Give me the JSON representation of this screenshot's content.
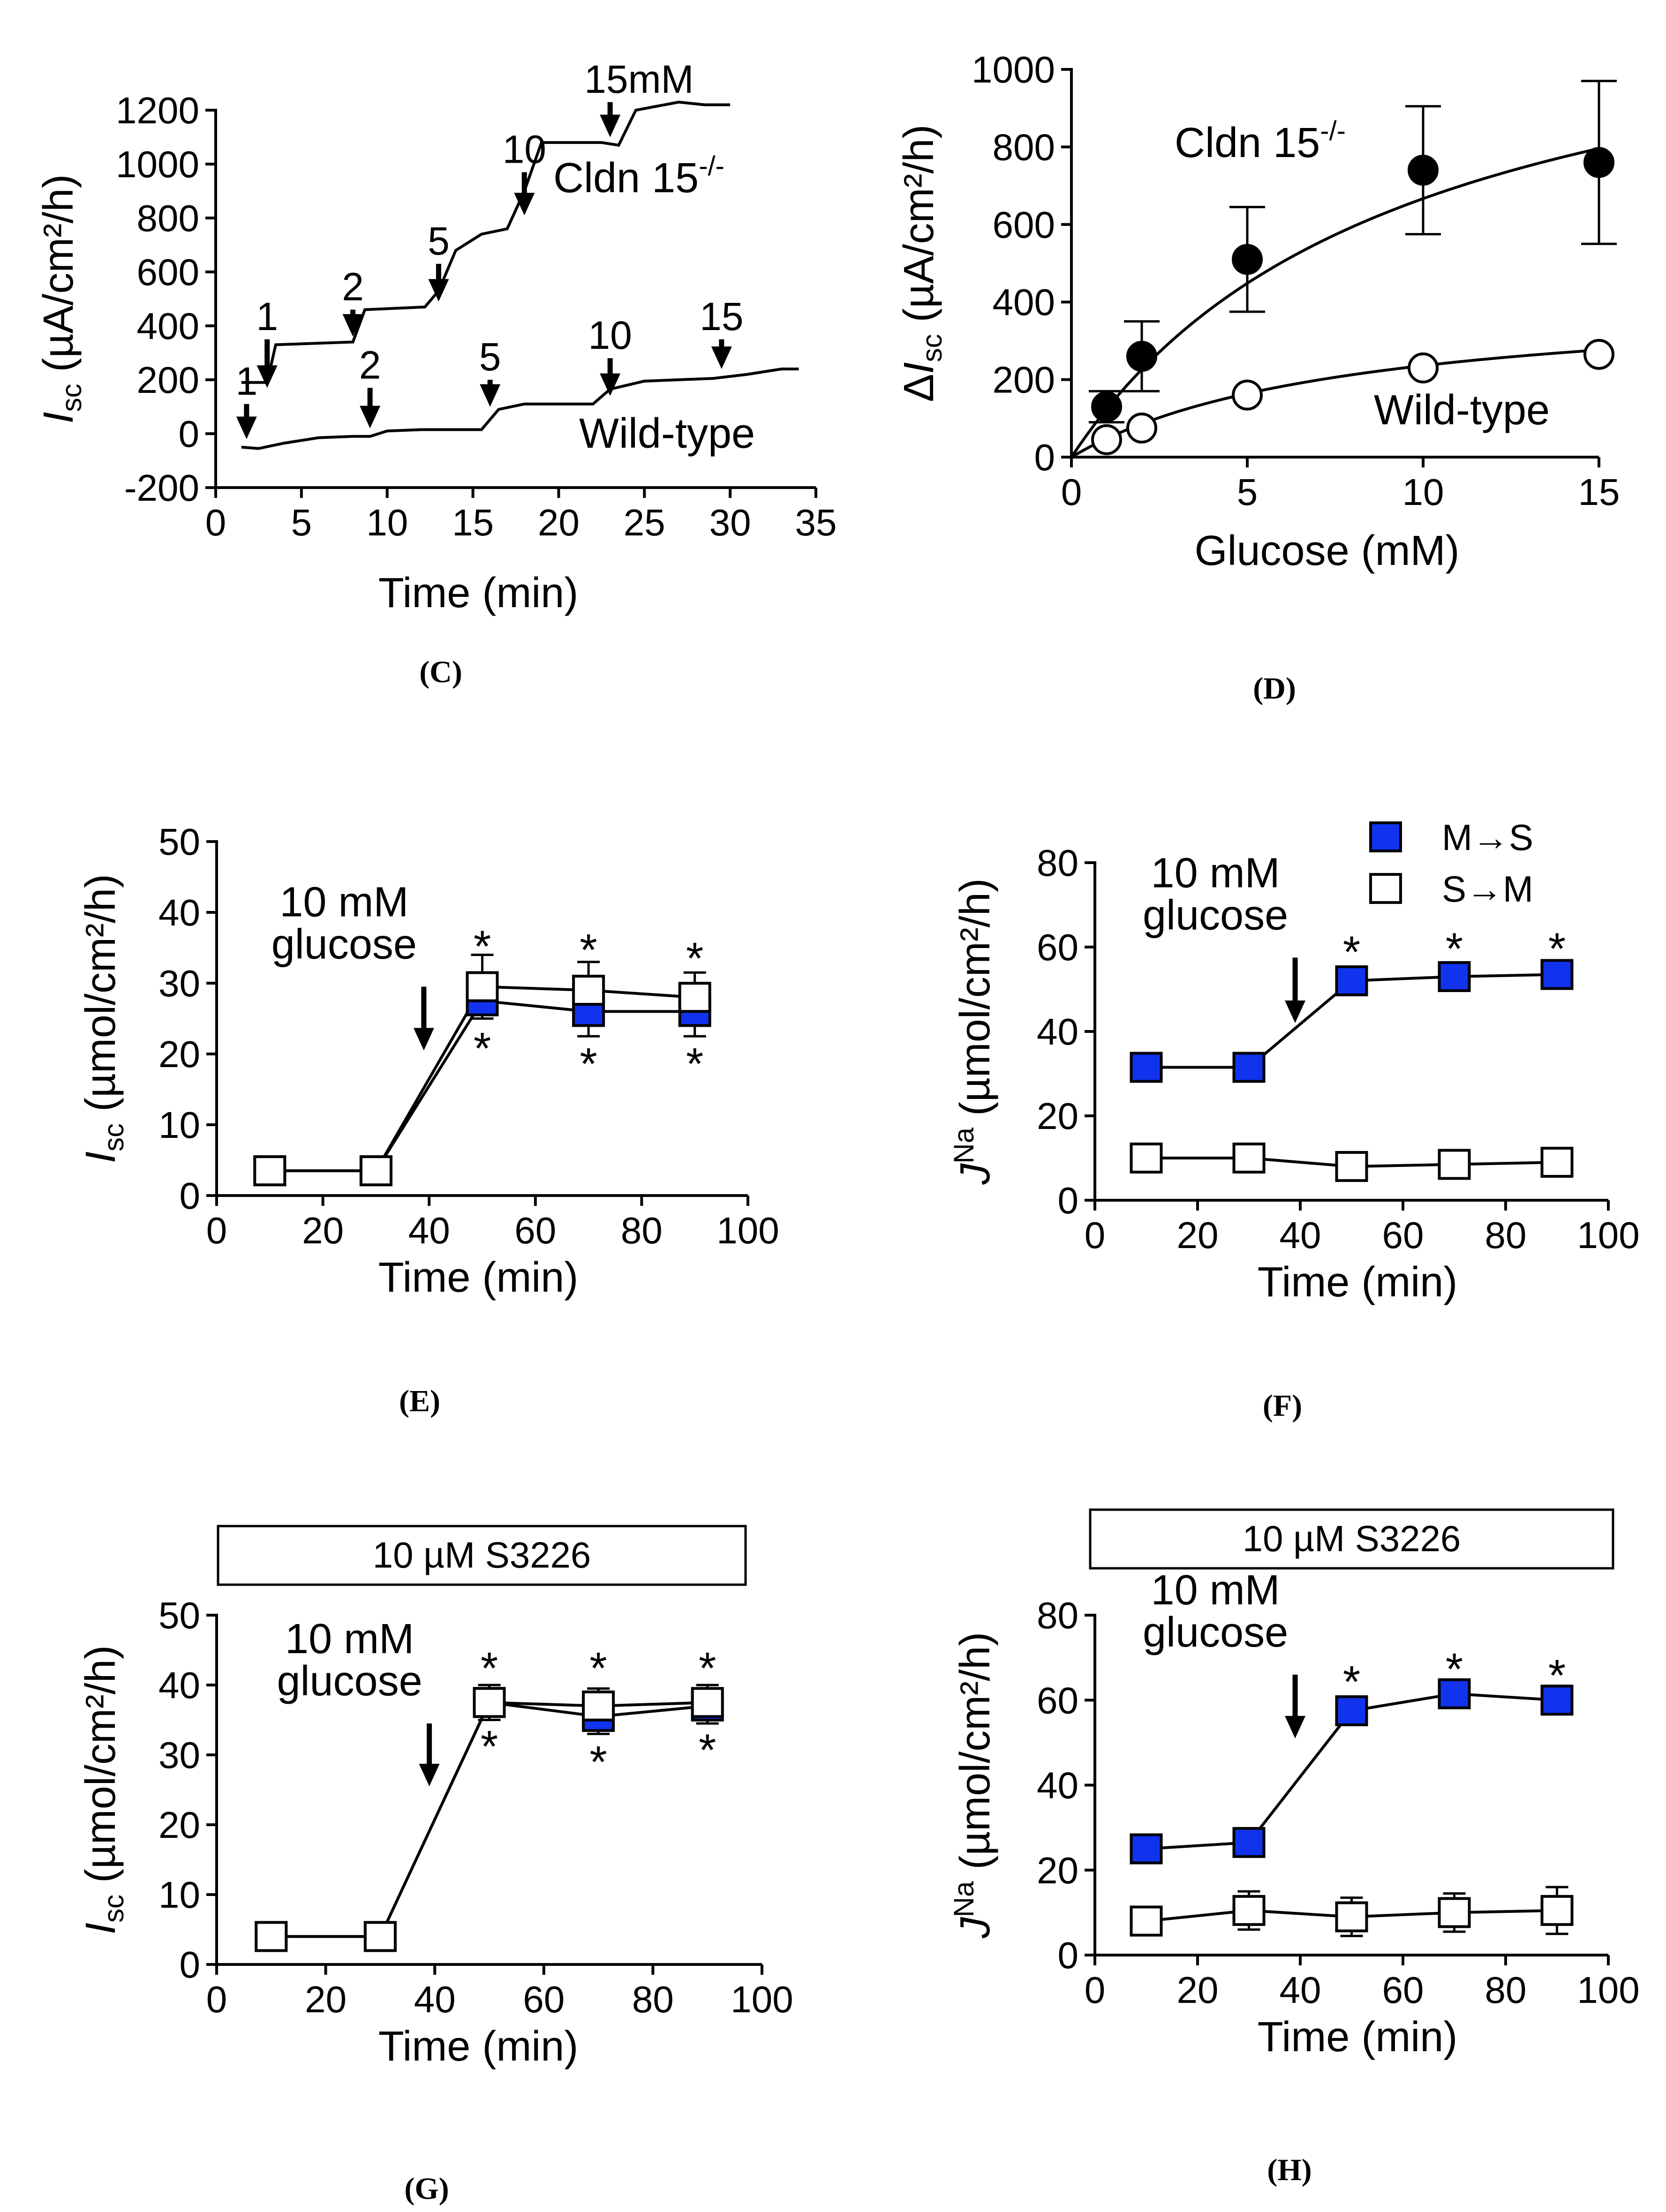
{
  "colors": {
    "filled_marker": "#1133EE",
    "open_marker": "#FFFFFF",
    "line": "#000000"
  },
  "chart_data": [
    {
      "id": "C",
      "type": "line",
      "caption": "(C)",
      "ylabel": {
        "main": "I",
        "sub": "sc",
        "rest": " (µA/cm²/h)"
      },
      "xlabel": "Time (min)",
      "xlim": [
        0,
        35
      ],
      "ylim": [
        -200,
        1200
      ],
      "xticks": [
        0,
        5,
        10,
        15,
        20,
        25,
        30,
        35
      ],
      "yticks": [
        -200,
        0,
        200,
        400,
        600,
        800,
        1000,
        1200
      ],
      "series": [
        {
          "name": "Cldn 15-/-",
          "label_main": "Cldn 15",
          "label_sup": "-/-",
          "x": [
            1.5,
            3,
            3.5,
            8,
            8.7,
            12.2,
            13,
            14,
            15.5,
            17,
            18,
            19,
            22.5,
            23.5,
            24.5,
            27,
            28.5,
            30
          ],
          "y": [
            190,
            190,
            330,
            340,
            460,
            470,
            530,
            680,
            740,
            760,
            900,
            1080,
            1080,
            1070,
            1200,
            1230,
            1220,
            1220
          ]
        },
        {
          "name": "Wild-type",
          "label_main": "Wild-type",
          "x": [
            1.5,
            2.5,
            4,
            6,
            8,
            9,
            10,
            12,
            15.5,
            16.5,
            18,
            22,
            23,
            25,
            27,
            29,
            31,
            33,
            34
          ],
          "y": [
            -50,
            -55,
            -35,
            -15,
            -10,
            -10,
            10,
            15,
            15,
            90,
            110,
            110,
            165,
            195,
            200,
            205,
            220,
            240,
            240
          ]
        }
      ],
      "annotations": [
        {
          "text": "1",
          "x": 3,
          "y_tail": 350,
          "y_head": 170
        },
        {
          "text": "2",
          "x": 8,
          "y_tail": 460,
          "y_head": 360
        },
        {
          "text": "5",
          "x": 13,
          "y_tail": 630,
          "y_head": 490
        },
        {
          "text": "10",
          "x": 18,
          "y_tail": 970,
          "y_head": 810
        },
        {
          "text": "15mM",
          "x": 23,
          "y_tail": 1230,
          "y_head": 1100
        },
        {
          "text": "1",
          "x": 1.8,
          "y_tail": 110,
          "y_head": -20
        },
        {
          "text": "2",
          "x": 9,
          "y_tail": 170,
          "y_head": 20
        },
        {
          "text": "5",
          "x": 16,
          "y_tail": 200,
          "y_head": 100
        },
        {
          "text": "10",
          "x": 23,
          "y_tail": 280,
          "y_head": 140
        },
        {
          "text": "15",
          "x": 29.5,
          "y_tail": 350,
          "y_head": 240
        }
      ]
    },
    {
      "id": "D",
      "type": "scatter",
      "caption": "(D)",
      "ylabel": {
        "prefix": "Δ",
        "main": "I",
        "sub": "sc",
        "rest": " (µA/cm²/h)"
      },
      "xlabel": "Glucose (mM)",
      "xlim": [
        0,
        15
      ],
      "ylim": [
        0,
        1000
      ],
      "xticks": [
        0,
        5,
        10,
        15
      ],
      "yticks": [
        0,
        200,
        400,
        600,
        800,
        1000
      ],
      "series": [
        {
          "name": "Cldn 15-/-",
          "label_main": "Cldn 15",
          "label_sup": "-/-",
          "marker": "filled-circle",
          "x": [
            1,
            2,
            5,
            10,
            15
          ],
          "y": [
            130,
            260,
            510,
            740,
            760
          ],
          "err": [
            40,
            90,
            135,
            165,
            210
          ],
          "fit_vmax": 1300,
          "fit_km": 9.5
        },
        {
          "name": "Wild-type",
          "label_main": "Wild-type",
          "marker": "open-circle",
          "x": [
            1,
            2,
            5,
            10,
            15
          ],
          "y": [
            45,
            75,
            160,
            230,
            265
          ],
          "err": [
            10,
            15,
            15,
            15,
            15
          ],
          "fit_vmax": 420,
          "fit_km": 7.8
        }
      ]
    },
    {
      "id": "E",
      "type": "line",
      "caption": "(E)",
      "ylabel": {
        "main": "I",
        "sub": "sc",
        "rest": " (µmol/cm²/h)"
      },
      "xlabel": "Time (min)",
      "xlim": [
        0,
        100
      ],
      "ylim": [
        0,
        50
      ],
      "xticks": [
        0,
        20,
        40,
        60,
        80,
        100
      ],
      "yticks": [
        0,
        10,
        20,
        30,
        40,
        50
      ],
      "series": [
        {
          "name": "M→S",
          "marker": "filled-square",
          "x": [
            10,
            30,
            50,
            70,
            90
          ],
          "y": [
            3.5,
            3.5,
            27.5,
            26,
            26
          ],
          "err": [
            0.5,
            0.5,
            2.5,
            3.5,
            3.5
          ]
        },
        {
          "name": "S→M",
          "marker": "open-square",
          "x": [
            10,
            30,
            50,
            70,
            90
          ],
          "y": [
            3.5,
            3.5,
            29.5,
            29,
            28
          ],
          "err": [
            0.5,
            0.5,
            4.5,
            4,
            3.5
          ]
        }
      ],
      "arrow": {
        "x": 39,
        "y_tail": 29.5,
        "y_head": 20.5
      },
      "note_lines": [
        "10 mM",
        "glucose"
      ],
      "stars_top": {
        "x": [
          50,
          70,
          90
        ],
        "y": [
          35,
          34.5,
          33.3
        ],
        "text": "*"
      },
      "stars_bottom": {
        "x": [
          50,
          70,
          90
        ],
        "y": [
          20.6,
          18.4,
          18.4
        ],
        "text": "*"
      }
    },
    {
      "id": "F",
      "type": "line",
      "caption": "(F)",
      "ylabel": {
        "main": "J",
        "sup": "Na",
        "rest": " (µmol/cm²/h)"
      },
      "xlabel": "Time (min)",
      "xlim": [
        0,
        100
      ],
      "ylim": [
        0,
        80
      ],
      "xticks": [
        0,
        20,
        40,
        60,
        80,
        100
      ],
      "yticks": [
        0,
        20,
        40,
        60,
        80
      ],
      "series": [
        {
          "name": "M→S",
          "marker": "filled-square",
          "x": [
            10,
            30,
            50,
            70,
            90
          ],
          "y": [
            31.5,
            31.5,
            52,
            53,
            53.5
          ],
          "err": [
            1,
            1,
            1.5,
            1.5,
            1.5
          ]
        },
        {
          "name": "S→M",
          "marker": "open-square",
          "x": [
            10,
            30,
            50,
            70,
            90
          ],
          "y": [
            10,
            10,
            8,
            8.5,
            9
          ],
          "err": [
            1,
            1,
            1,
            1,
            1
          ]
        }
      ],
      "legend": [
        {
          "label": "M→S",
          "marker": "filled-square"
        },
        {
          "label": "S→M",
          "marker": "open-square"
        }
      ],
      "arrow": {
        "x": 39,
        "y_tail": 57.5,
        "y_head": 42
      },
      "note_lines": [
        "10 mM",
        "glucose"
      ],
      "stars_top": {
        "x": [
          50,
          70,
          90
        ],
        "y": [
          58.5,
          59.3,
          59.3
        ],
        "text": "*"
      }
    },
    {
      "id": "G",
      "type": "line",
      "caption": "(G)",
      "treatment": "10 µM S3226",
      "ylabel": {
        "main": "I",
        "sub": "sc",
        "rest": " (µmol/cm²/h)"
      },
      "xlabel": "Time (min)",
      "xlim": [
        0,
        100
      ],
      "ylim": [
        0,
        50
      ],
      "xticks": [
        0,
        20,
        40,
        60,
        80,
        100
      ],
      "yticks": [
        0,
        10,
        20,
        30,
        40,
        50
      ],
      "series": [
        {
          "name": "M→S",
          "marker": "filled-square",
          "x": [
            10,
            30,
            50,
            70,
            90
          ],
          "y": [
            4,
            4,
            37.5,
            35.5,
            37
          ],
          "err": [
            0.5,
            0.5,
            2.5,
            2.5,
            2.5
          ]
        },
        {
          "name": "S→M",
          "marker": "open-square",
          "x": [
            10,
            30,
            50,
            70,
            90
          ],
          "y": [
            4,
            4,
            37.5,
            37,
            37.5
          ],
          "err": [
            0.5,
            0.5,
            2.5,
            2.5,
            2.5
          ]
        }
      ],
      "arrow": {
        "x": 39,
        "y_tail": 34.5,
        "y_head": 25.5
      },
      "note_lines": [
        "10 mM",
        "glucose"
      ],
      "stars_top": {
        "x": [
          50,
          70,
          90
        ],
        "y": [
          42.2,
          42.2,
          42.2
        ],
        "text": "*"
      },
      "stars_bottom": {
        "x": [
          50,
          70,
          90
        ],
        "y": [
          31,
          28.8,
          30.5
        ],
        "text": "*"
      }
    },
    {
      "id": "H",
      "type": "line",
      "caption": "(H)",
      "treatment": "10 µM S3226",
      "ylabel": {
        "main": "J",
        "sup": "Na",
        "rest": " (µmol/cm²/h)"
      },
      "xlabel": "Time (min)",
      "xlim": [
        0,
        100
      ],
      "ylim": [
        0,
        80
      ],
      "xticks": [
        0,
        20,
        40,
        60,
        80,
        100
      ],
      "yticks": [
        0,
        20,
        40,
        60,
        80
      ],
      "series": [
        {
          "name": "M→S",
          "marker": "filled-square",
          "x": [
            10,
            30,
            50,
            70,
            90
          ],
          "y": [
            25,
            26.5,
            57.5,
            61.5,
            60
          ],
          "err": [
            1,
            1.5,
            2,
            2.5,
            1.5
          ]
        },
        {
          "name": "S→M",
          "marker": "open-square",
          "x": [
            10,
            30,
            50,
            70,
            90
          ],
          "y": [
            8,
            10.5,
            9,
            10,
            10.5
          ],
          "err": [
            1,
            4.5,
            4.5,
            4.5,
            5.5
          ]
        }
      ],
      "arrow": {
        "x": 39,
        "y_tail": 66,
        "y_head": 51
      },
      "note_lines": [
        "10 mM",
        "glucose"
      ],
      "stars_top": {
        "x": [
          50,
          70,
          90
        ],
        "y": [
          64,
          67,
          65.5
        ],
        "text": "*"
      }
    }
  ]
}
